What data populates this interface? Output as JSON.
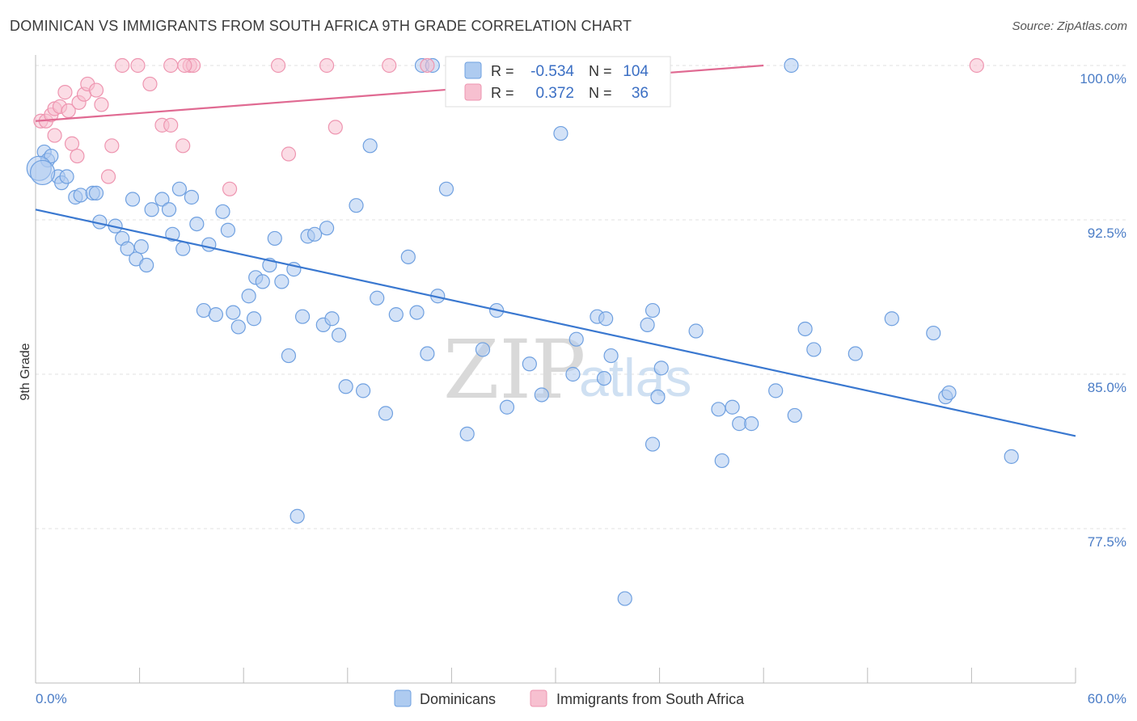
{
  "title": "DOMINICAN VS IMMIGRANTS FROM SOUTH AFRICA 9TH GRADE CORRELATION CHART",
  "source": "Source: ZipAtlas.com",
  "watermark": {
    "zip": "ZIP",
    "atlas": "atlas"
  },
  "chart_data": {
    "type": "scatter",
    "ylabel": "9th Grade",
    "xlim": [
      0,
      60
    ],
    "ylim": [
      70,
      100.5
    ],
    "x_tick_labels": [
      "0.0%",
      "60.0%"
    ],
    "y_ticks": [
      {
        "value": 100.0,
        "label": "100.0%"
      },
      {
        "value": 92.5,
        "label": "92.5%"
      },
      {
        "value": 85.0,
        "label": "85.0%"
      },
      {
        "value": 77.5,
        "label": "77.5%"
      }
    ],
    "legend": {
      "r_label": "R =",
      "n_label": "N =",
      "entries": [
        {
          "name": "Dominicans",
          "r": "-0.534",
          "n": "104",
          "color": "#6fa0e0",
          "fill": "#aecbf0",
          "line": "#3a78d0"
        },
        {
          "name": "Immigrants from South Africa",
          "r": "0.372",
          "n": "36",
          "color": "#ee95b0",
          "fill": "#f7c0d0",
          "line": "#e06a92"
        }
      ]
    },
    "series": [
      {
        "name": "Dominicans",
        "trend": {
          "x0": 0,
          "y0": 93.0,
          "x1": 60,
          "y1": 82.0
        },
        "points": [
          [
            0.5,
            95.8
          ],
          [
            0.7,
            95.4
          ],
          [
            0.9,
            95.6
          ],
          [
            1.3,
            94.6
          ],
          [
            1.5,
            94.3
          ],
          [
            1.8,
            94.6
          ],
          [
            2.3,
            93.6
          ],
          [
            2.6,
            93.7
          ],
          [
            3.3,
            93.8
          ],
          [
            3.5,
            93.8
          ],
          [
            3.7,
            92.4
          ],
          [
            4.6,
            92.2
          ],
          [
            5.0,
            91.6
          ],
          [
            5.3,
            91.1
          ],
          [
            5.8,
            90.6
          ],
          [
            5.6,
            93.5
          ],
          [
            6.4,
            90.3
          ],
          [
            6.7,
            93.0
          ],
          [
            7.3,
            93.5
          ],
          [
            7.7,
            93.0
          ],
          [
            7.9,
            91.8
          ],
          [
            8.5,
            91.1
          ],
          [
            8.3,
            94.0
          ],
          [
            9.0,
            93.6
          ],
          [
            9.3,
            92.3
          ],
          [
            9.7,
            88.1
          ],
          [
            10.0,
            91.3
          ],
          [
            10.4,
            87.9
          ],
          [
            10.8,
            92.9
          ],
          [
            11.1,
            92.0
          ],
          [
            11.4,
            88.0
          ],
          [
            11.7,
            87.3
          ],
          [
            12.3,
            88.8
          ],
          [
            12.6,
            87.7
          ],
          [
            12.7,
            89.7
          ],
          [
            13.1,
            89.5
          ],
          [
            13.5,
            90.3
          ],
          [
            13.8,
            91.6
          ],
          [
            14.2,
            89.5
          ],
          [
            14.6,
            85.9
          ],
          [
            14.9,
            90.1
          ],
          [
            15.4,
            87.8
          ],
          [
            15.7,
            91.7
          ],
          [
            16.1,
            91.8
          ],
          [
            16.6,
            87.4
          ],
          [
            17.1,
            87.7
          ],
          [
            16.8,
            92.1
          ],
          [
            17.5,
            86.9
          ],
          [
            17.9,
            84.4
          ],
          [
            18.5,
            93.2
          ],
          [
            18.9,
            84.2
          ],
          [
            19.3,
            96.1
          ],
          [
            19.7,
            88.7
          ],
          [
            20.2,
            83.1
          ],
          [
            20.8,
            87.9
          ],
          [
            21.5,
            90.7
          ],
          [
            22.0,
            88.0
          ],
          [
            22.6,
            86.0
          ],
          [
            23.2,
            88.8
          ],
          [
            23.7,
            94.0
          ],
          [
            22.3,
            100
          ],
          [
            22.9,
            100
          ],
          [
            24.3,
            100
          ],
          [
            24.9,
            82.1
          ],
          [
            25.8,
            86.2
          ],
          [
            26.6,
            88.1
          ],
          [
            27.2,
            83.4
          ],
          [
            28.5,
            85.5
          ],
          [
            29.2,
            84.0
          ],
          [
            30.3,
            96.7
          ],
          [
            31.0,
            85.0
          ],
          [
            31.2,
            86.7
          ],
          [
            32.4,
            87.8
          ],
          [
            32.9,
            87.7
          ],
          [
            33.2,
            85.9
          ],
          [
            32.8,
            84.8
          ],
          [
            34.0,
            74.1
          ],
          [
            34.7,
            100
          ],
          [
            35.6,
            88.1
          ],
          [
            35.3,
            87.4
          ],
          [
            35.6,
            81.6
          ],
          [
            35.9,
            83.9
          ],
          [
            36.1,
            85.3
          ],
          [
            38.1,
            87.1
          ],
          [
            39.6,
            80.8
          ],
          [
            39.4,
            83.3
          ],
          [
            40.2,
            83.4
          ],
          [
            40.6,
            82.6
          ],
          [
            41.3,
            82.6
          ],
          [
            42.7,
            84.2
          ],
          [
            43.6,
            100
          ],
          [
            43.8,
            83.0
          ],
          [
            44.4,
            87.2
          ],
          [
            44.9,
            86.2
          ],
          [
            47.3,
            86.0
          ],
          [
            49.4,
            87.7
          ],
          [
            51.8,
            87.0
          ],
          [
            52.5,
            83.9
          ],
          [
            52.7,
            84.1
          ],
          [
            56.3,
            81.0
          ],
          [
            15.1,
            78.1
          ],
          [
            0.2,
            95.0
          ],
          [
            0.4,
            94.8
          ],
          [
            6.1,
            91.2
          ]
        ]
      },
      {
        "name": "Immigrants from South Africa",
        "trend": {
          "x0": 0,
          "y0": 97.3,
          "x1": 42,
          "y1": 100.0
        },
        "points": [
          [
            0.3,
            97.3
          ],
          [
            0.6,
            97.3
          ],
          [
            0.9,
            97.6
          ],
          [
            1.1,
            97.9
          ],
          [
            1.4,
            98.0
          ],
          [
            1.7,
            98.7
          ],
          [
            1.9,
            97.8
          ],
          [
            2.1,
            96.2
          ],
          [
            2.5,
            98.2
          ],
          [
            2.8,
            98.6
          ],
          [
            3.0,
            99.1
          ],
          [
            3.5,
            98.8
          ],
          [
            3.8,
            98.1
          ],
          [
            4.4,
            96.1
          ],
          [
            5.0,
            100
          ],
          [
            5.9,
            100
          ],
          [
            6.6,
            99.1
          ],
          [
            7.3,
            97.1
          ],
          [
            7.8,
            100
          ],
          [
            8.5,
            96.1
          ],
          [
            8.9,
            100
          ],
          [
            9.1,
            100
          ],
          [
            11.2,
            94.0
          ],
          [
            14.0,
            100
          ],
          [
            14.6,
            95.7
          ],
          [
            16.8,
            100
          ],
          [
            17.3,
            97.0
          ],
          [
            20.4,
            100
          ],
          [
            22.6,
            100
          ],
          [
            4.2,
            94.6
          ],
          [
            7.8,
            97.1
          ],
          [
            8.6,
            100
          ],
          [
            2.4,
            95.6
          ],
          [
            1.1,
            96.6
          ],
          [
            30.6,
            100
          ],
          [
            54.3,
            100
          ]
        ]
      }
    ]
  }
}
